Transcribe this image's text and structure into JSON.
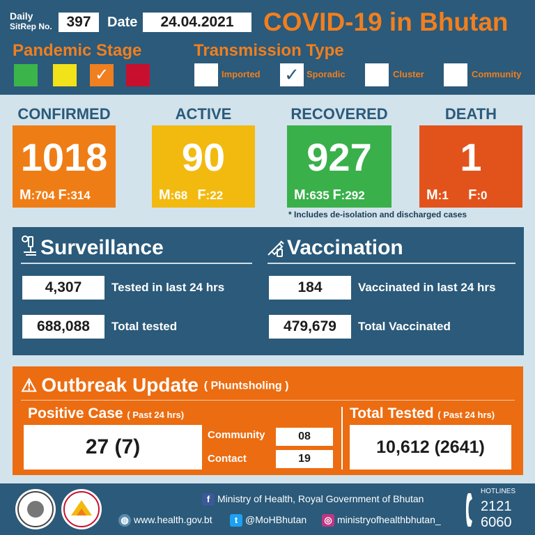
{
  "header": {
    "sitrep_label_line1": "Daily",
    "sitrep_label_line2": "SitRep No.",
    "sitrep_number": "397",
    "date_label": "Date",
    "date_value": "24.04.2021",
    "title": "COVID-19 in Bhutan"
  },
  "pandemic_stage": {
    "title": "Pandemic Stage",
    "levels": [
      {
        "color": "#3bb54a",
        "checked": false
      },
      {
        "color": "#f2e21a",
        "checked": false
      },
      {
        "color": "#f07f1f",
        "checked": true
      },
      {
        "color": "#c8102e",
        "checked": false
      }
    ]
  },
  "transmission": {
    "title": "Transmission Type",
    "types": [
      {
        "label": "Imported",
        "checked": false
      },
      {
        "label": "Sporadic",
        "checked": true
      },
      {
        "label": "Cluster",
        "checked": false
      },
      {
        "label": "Community",
        "checked": false
      }
    ]
  },
  "stats": {
    "confirmed": {
      "label": "CONFIRMED",
      "value": "1018",
      "m_key": "M",
      "m": ":704",
      "f_key": "F",
      "f": ":314",
      "color": "#ef7d16"
    },
    "active": {
      "label": "ACTIVE",
      "value": "90",
      "m_key": "M",
      "m": ":68",
      "f_key": "F",
      "f": ":22",
      "color": "#f2b90f"
    },
    "recovered": {
      "label": "RECOVERED",
      "value": "927",
      "m_key": "M",
      "m": ":635",
      "f_key": "F",
      "f": ":292",
      "color": "#39b04a"
    },
    "death": {
      "label": "DEATH",
      "value": "1",
      "m_key": "M",
      "m": ":1",
      "f_key": "F",
      "f": ":0",
      "color": "#e2531b"
    },
    "footnote": "* Includes de-isolation and discharged cases"
  },
  "surveillance": {
    "title": "Surveillance",
    "tested_24h": "4,307",
    "tested_24h_label": "Tested in last 24 hrs",
    "total_tested": "688,088",
    "total_tested_label": "Total tested"
  },
  "vaccination": {
    "title": "Vaccination",
    "vaccinated_24h": "184",
    "vaccinated_24h_label": "Vaccinated in last 24 hrs",
    "total_vaccinated": "479,679",
    "total_vaccinated_label": "Total Vaccinated"
  },
  "outbreak": {
    "title": "Outbreak Update",
    "location": "( Phuntsholing )",
    "positive_label": "Positive Case",
    "positive_sub": "( Past 24 hrs)",
    "positive_value": "27 (7)",
    "community_label": "Community",
    "community_value": "08",
    "contact_label": "Contact",
    "contact_value": "19",
    "tested_label": "Total Tested",
    "tested_sub": "( Past 24 hrs)",
    "tested_value": "10,612 (2641)"
  },
  "footer": {
    "ministry": "Ministry of Health, Royal Government of Bhutan",
    "website": "www.health.gov.bt",
    "twitter": "@MoHBhutan",
    "instagram": "ministryofhealthbhutan_",
    "hotline_label": "HOTLINES",
    "hotline_1": "2121",
    "hotline_2": "6060"
  }
}
